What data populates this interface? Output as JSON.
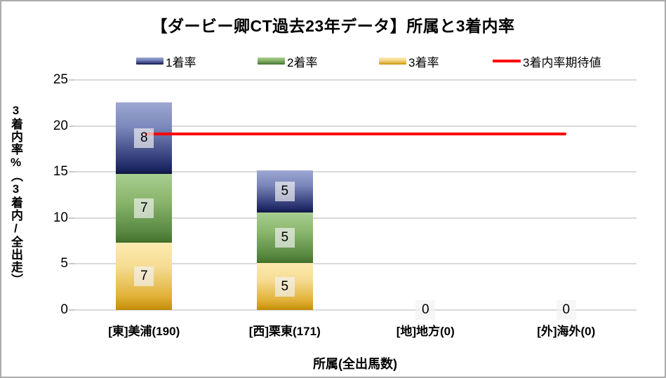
{
  "window": {
    "background": "#ffffff",
    "border_color": "#ababab"
  },
  "title": "【ダービー卿CT過去23年データ】所属と3着内率",
  "legend": [
    {
      "label": "1着率",
      "type": "swatch",
      "series": "1着率"
    },
    {
      "label": "2着率",
      "type": "swatch",
      "series": "2着率"
    },
    {
      "label": "3着率",
      "type": "swatch",
      "series": "3着率"
    },
    {
      "label": "3着内率期待値",
      "type": "line",
      "color": "#ff0000"
    }
  ],
  "chart_data": {
    "type": "bar",
    "stacked": true,
    "title": "【ダービー卿CT過去23年データ】所属と3着内率",
    "xlabel": "所属(全出馬数)",
    "ylabel": "3着内率%（3着内/全出走）",
    "ylim": [
      0,
      25
    ],
    "yticks": [
      0,
      5,
      10,
      15,
      20,
      25
    ],
    "grid": true,
    "legend_position": "top-center",
    "categories": [
      "[東]美浦(190)",
      "[西]栗東(171)",
      "[地]地方(0)",
      "[外]海外(0)"
    ],
    "series": [
      {
        "name": "3着率",
        "values": [
          7.3,
          5.1,
          0,
          0
        ],
        "labels": [
          "7",
          "5",
          "0",
          "0"
        ],
        "gradient": [
          "#fdeab0 0%",
          "#f6dd95 35%",
          "#e0b136 80%",
          "#c8920e 97%",
          "#bb8707 100%"
        ]
      },
      {
        "name": "2着率",
        "values": [
          7.5,
          5.5,
          0,
          0
        ],
        "labels": [
          "7",
          "5",
          null,
          null
        ],
        "gradient": [
          "#a7ce90 0%",
          "#8ab56c 40%",
          "#578841 85%",
          "#47762f 97%",
          "#3f6a2b 100%"
        ]
      },
      {
        "name": "1着率",
        "values": [
          7.8,
          4.6,
          0,
          0
        ],
        "labels": [
          "8",
          "5",
          null,
          null
        ],
        "gradient": [
          "#9da7d2 0%",
          "#7b87bb 35%",
          "#39437f 75%",
          "#1c2864 92%",
          "#101741 100%"
        ]
      }
    ],
    "line": {
      "name": "3着内率期待値",
      "value": 19.1,
      "color": "#ff0000",
      "from_category": 0,
      "to_category": 3
    }
  },
  "colors": {
    "gridline": "#d9d9d9",
    "tick": "#c9c9c9",
    "label_box_bg": "rgba(241,241,241,0.68)"
  },
  "layout_hints": {
    "legend_left_offsets": [
      192,
      365,
      538,
      700
    ]
  }
}
